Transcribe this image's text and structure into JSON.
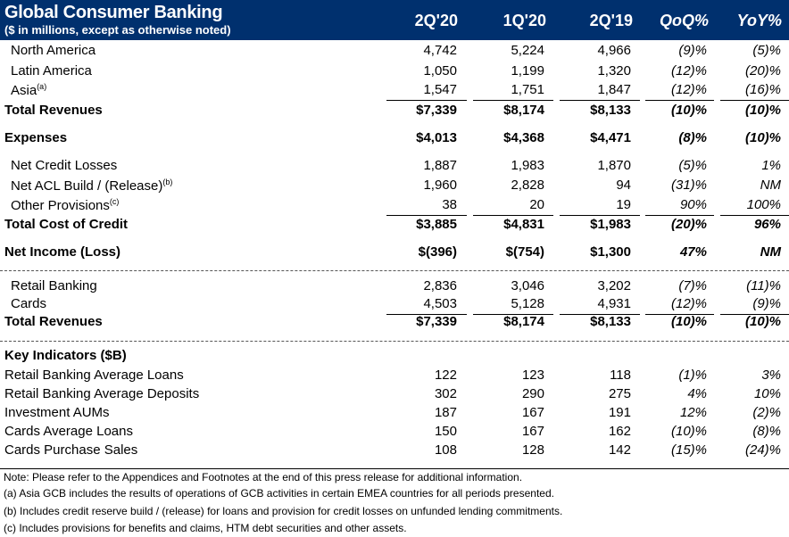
{
  "header": {
    "title": "Global Consumer Banking",
    "subtitle": "($ in millions, except as otherwise noted)",
    "columns": [
      "2Q'20",
      "1Q'20",
      "2Q'19",
      "QoQ%",
      "YoY%"
    ],
    "background_color": "#00306e"
  },
  "rows": [
    {
      "label": "North America",
      "indent": true,
      "values": [
        "4,742",
        "5,224",
        "4,966",
        "(9)%",
        "(5)%"
      ]
    },
    {
      "label": "Latin America",
      "indent": true,
      "values": [
        "1,050",
        "1,199",
        "1,320",
        "(12)%",
        "(20)%"
      ]
    },
    {
      "label": "Asia",
      "sup": "(a)",
      "indent": true,
      "values": [
        "1,547",
        "1,751",
        "1,847",
        "(12)%",
        "(16)%"
      ],
      "underline": true
    },
    {
      "label": "Total Revenues",
      "bold": true,
      "values": [
        "$7,339",
        "$8,174",
        "$8,133",
        "(10)%",
        "(10)%"
      ]
    },
    {
      "label": "Expenses",
      "bold": true,
      "values": [
        "$4,013",
        "$4,368",
        "$4,471",
        "(8)%",
        "(10)%"
      ]
    },
    {
      "label": "Net Credit Losses",
      "indent": true,
      "values": [
        "1,887",
        "1,983",
        "1,870",
        "(5)%",
        "1%"
      ]
    },
    {
      "label": "Net ACL Build / (Release)",
      "sup": "(b)",
      "indent": true,
      "values": [
        "1,960",
        "2,828",
        "94",
        "(31)%",
        "NM"
      ]
    },
    {
      "label": "Other Provisions",
      "sup": "(c)",
      "indent": true,
      "values": [
        "38",
        "20",
        "19",
        "90%",
        "100%"
      ],
      "underline": true
    },
    {
      "label": "Total Cost of Credit",
      "bold": true,
      "values": [
        "$3,885",
        "$4,831",
        "$1,983",
        "(20)%",
        "96%"
      ]
    },
    {
      "label": "Net Income (Loss)",
      "bold": true,
      "values": [
        "$(396)",
        "$(754)",
        "$1,300",
        "47%",
        "NM"
      ]
    },
    {
      "label": "Retail Banking",
      "indent": true,
      "values": [
        "2,836",
        "3,046",
        "3,202",
        "(7)%",
        "(11)%"
      ]
    },
    {
      "label": "Cards",
      "indent": true,
      "values": [
        "4,503",
        "5,128",
        "4,931",
        "(12)%",
        "(9)%"
      ],
      "underline": true
    },
    {
      "label": "Total Revenues",
      "bold": true,
      "values": [
        "$7,339",
        "$8,174",
        "$8,133",
        "(10)%",
        "(10)%"
      ]
    },
    {
      "label": "Key Indicators ($B)",
      "bold": true,
      "values": []
    },
    {
      "label": "Retail Banking Average Loans",
      "values": [
        "122",
        "123",
        "118",
        "(1)%",
        "3%"
      ]
    },
    {
      "label": "Retail Banking Average Deposits",
      "values": [
        "302",
        "290",
        "275",
        "4%",
        "10%"
      ]
    },
    {
      "label": "Investment AUMs",
      "values": [
        "187",
        "167",
        "191",
        "12%",
        "(2)%"
      ]
    },
    {
      "label": "Cards Average Loans",
      "values": [
        "150",
        "167",
        "162",
        "(10)%",
        "(8)%"
      ]
    },
    {
      "label": "Cards Purchase Sales",
      "values": [
        "108",
        "128",
        "142",
        "(15)%",
        "(24)%"
      ]
    }
  ],
  "notes": [
    "Note:  Please refer to the Appendices and Footnotes at the end of this press release for additional information.",
    "(a) Asia GCB includes the results of operations of GCB activities in certain EMEA countries for all periods presented.",
    "(b) Includes credit reserve build / (release) for loans and provision for credit losses on unfunded lending commitments.",
    "(c) Includes provisions for benefits and claims, HTM debt securities and other assets."
  ]
}
